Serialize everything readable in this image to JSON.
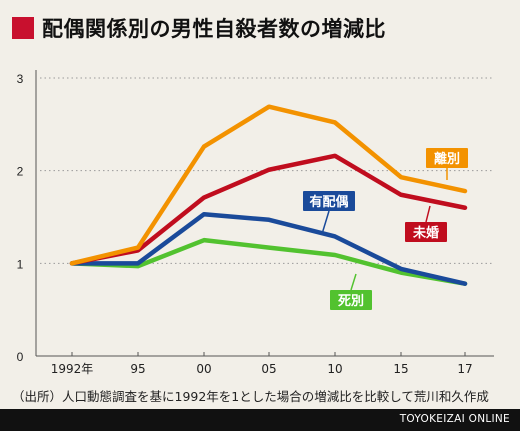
{
  "title": "配偶関係別の男性自殺者数の増減比",
  "source_note": "（出所）人口動態調査を基に1992年を1とした場合の増減比を比較して荒川和久作成",
  "brand": "TOYOKEIZAI ONLINE",
  "colors": {
    "accent": "#c8102e",
    "background": "#f2efe8",
    "footer": "#111111"
  },
  "chart_data": {
    "type": "line",
    "categories": [
      "1992年",
      "95",
      "00",
      "05",
      "10",
      "15",
      "17"
    ],
    "ylim": [
      0,
      3
    ],
    "yticks": [
      "0",
      "1",
      "2",
      "3"
    ],
    "grid": true,
    "series": [
      {
        "name": "離別",
        "color": "#f39200",
        "values": [
          1.0,
          1.17,
          2.26,
          2.69,
          2.52,
          1.93,
          1.78
        ]
      },
      {
        "name": "未婚",
        "color": "#c00d1e",
        "values": [
          1.0,
          1.14,
          1.71,
          2.01,
          2.16,
          1.74,
          1.6
        ]
      },
      {
        "name": "有配偶",
        "color": "#1a4a9a",
        "values": [
          1.0,
          1.0,
          1.53,
          1.47,
          1.29,
          0.94,
          0.78
        ]
      },
      {
        "name": "死別",
        "color": "#52c22f",
        "values": [
          1.0,
          0.97,
          1.25,
          1.17,
          1.09,
          0.9,
          0.78
        ]
      }
    ]
  }
}
